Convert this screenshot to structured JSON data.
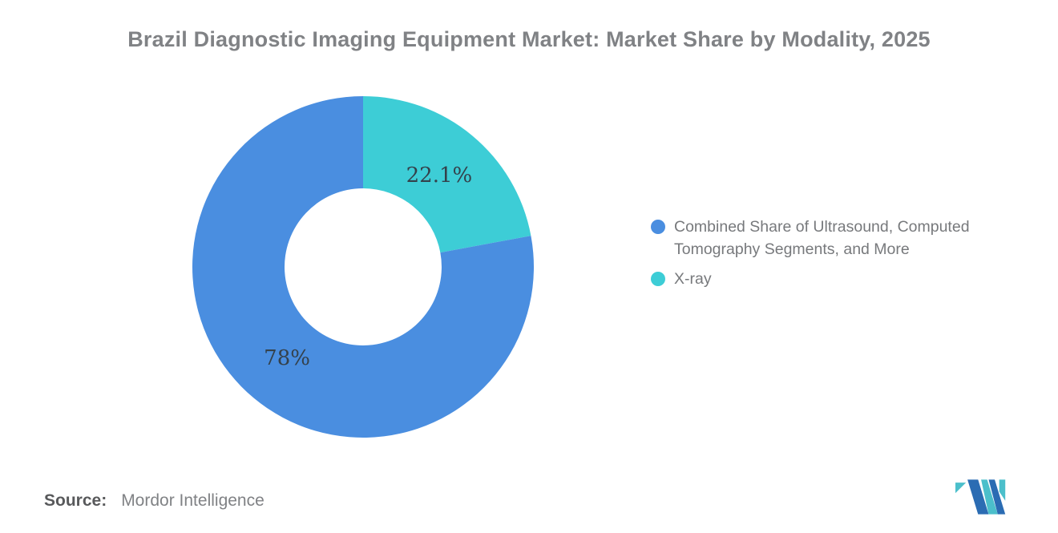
{
  "chart_data": {
    "type": "pie",
    "donut": true,
    "title": "Brazil Diagnostic Imaging Equipment Market: Market Share by Modality, 2025",
    "inner_radius_ratio": 0.46,
    "start_angle": "top",
    "direction": "clockwise",
    "legend_position": "right",
    "label_color": "#34414B",
    "segments": [
      {
        "id": "combined",
        "label": "Combined Share of Ultrasound, Computed Tomography Segments, and More",
        "value": 78,
        "display_label": "78%",
        "color": "#4A8EE0"
      },
      {
        "id": "xray",
        "label": "X-ray",
        "value": 22.1,
        "display_label": "22.1%",
        "color": "#3DCDD6"
      }
    ]
  },
  "header": {
    "title_color": "#808285"
  },
  "source": {
    "label": "Source:",
    "value": "Mordor Intelligence"
  },
  "logo": {
    "name": "mordor-intelligence-logo",
    "blue": "#2B6CB3",
    "teal": "#4BBFCB"
  }
}
